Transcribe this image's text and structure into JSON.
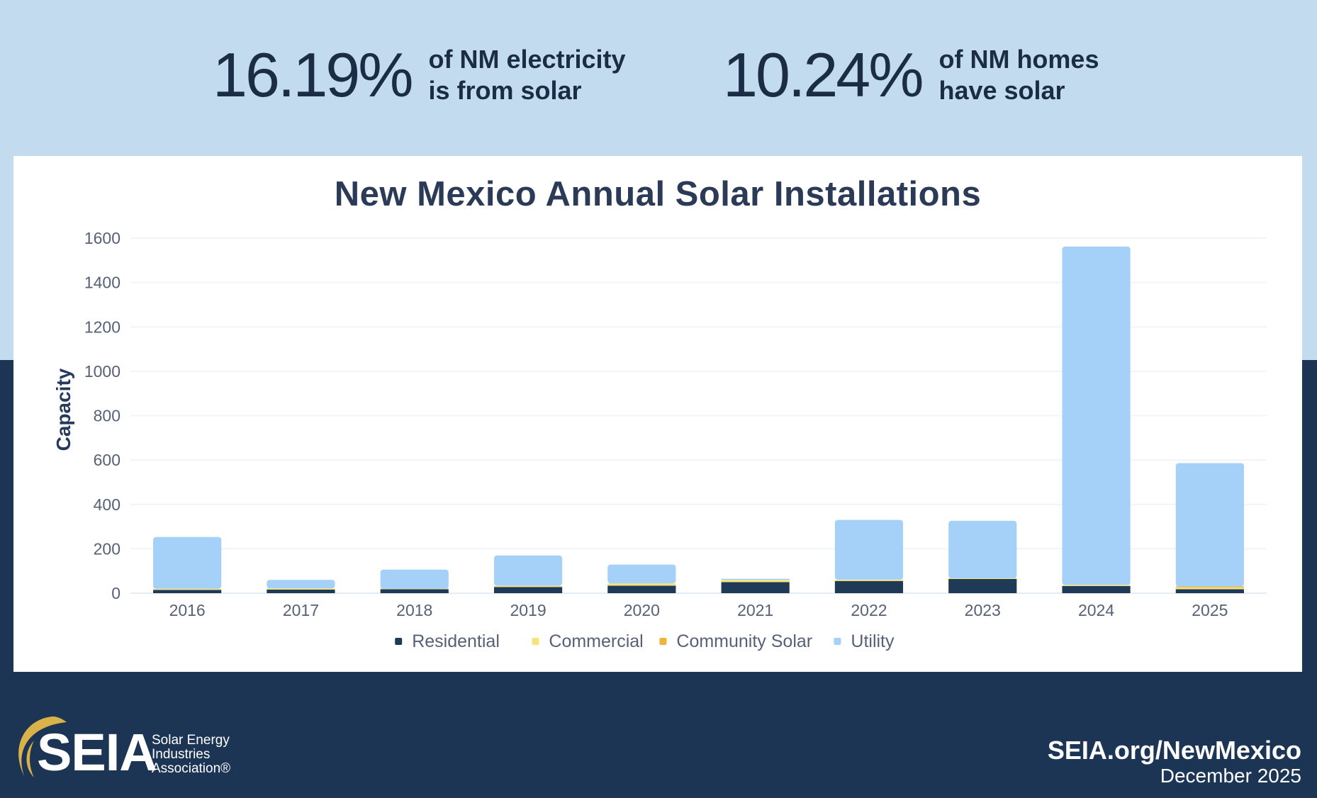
{
  "stats": [
    {
      "value": "16.19%",
      "line1": "of NM electricity",
      "line2": "is from solar"
    },
    {
      "value": "10.24%",
      "line1": "of NM homes",
      "line2": "have solar"
    }
  ],
  "colors": {
    "top_band": "#c3dbef",
    "navy": "#1c3554",
    "residential": "#1e3a57",
    "commercial": "#f8e27a",
    "community_solar": "#f0b43a",
    "utility": "#a5d1f8",
    "logo_gold": "#d9b24a"
  },
  "chart_data": {
    "type": "bar",
    "stacked": true,
    "title": "New Mexico Annual Solar Installations",
    "xlabel": "",
    "ylabel": "Capacity",
    "ylim": [
      0,
      1600
    ],
    "yticks": [
      0,
      200,
      400,
      600,
      800,
      1000,
      1200,
      1400,
      1600
    ],
    "grid": true,
    "legend_position": "bottom-center",
    "categories": [
      "2016",
      "2017",
      "2018",
      "2019",
      "2020",
      "2021",
      "2022",
      "2023",
      "2024",
      "2025"
    ],
    "series": [
      {
        "name": "Residential",
        "color": "#1e3a57",
        "values": [
          15,
          16,
          18,
          28,
          34,
          50,
          55,
          64,
          32,
          18
        ]
      },
      {
        "name": "Commercial",
        "color": "#f8e27a",
        "values": [
          5,
          6,
          2,
          6,
          10,
          10,
          6,
          3,
          5,
          8
        ]
      },
      {
        "name": "Community Solar",
        "color": "#f0b43a",
        "values": [
          0,
          0,
          0,
          0,
          0,
          0,
          0,
          0,
          0,
          4
        ]
      },
      {
        "name": "Utility",
        "color": "#a5d1f8",
        "values": [
          233,
          38,
          86,
          136,
          85,
          5,
          269,
          259,
          1525,
          556
        ]
      }
    ]
  },
  "logo": {
    "wordmark": "SEIA",
    "line1": "Solar Energy",
    "line2": "Industries",
    "line3": "Association®"
  },
  "footer": {
    "url": "SEIA.org/NewMexico",
    "date": "December 2025"
  }
}
